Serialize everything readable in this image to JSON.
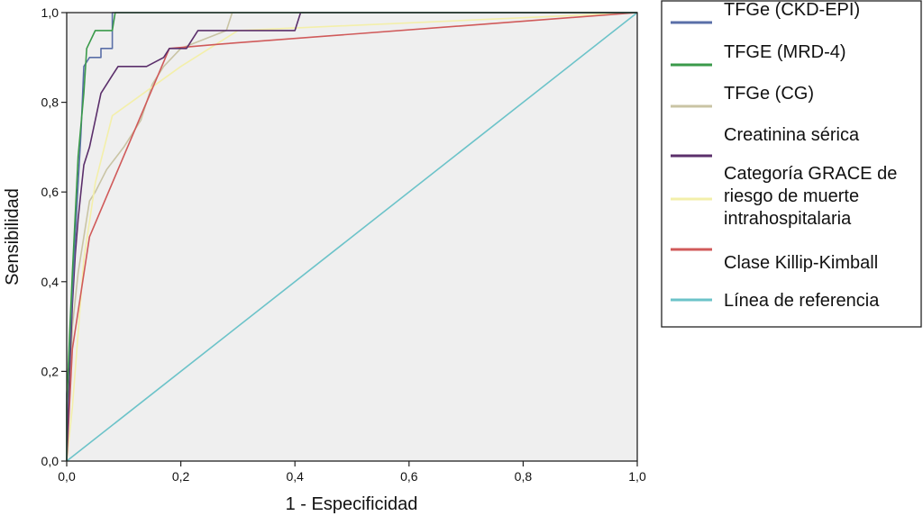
{
  "chart_data": {
    "type": "line",
    "xlabel": "1 - Especificidad",
    "ylabel": "Sensibilidad",
    "xlim": [
      0,
      1
    ],
    "ylim": [
      0,
      1
    ],
    "x_ticks": [
      "0,0",
      "0,2",
      "0,4",
      "0,6",
      "0,8",
      "1,0"
    ],
    "y_ticks": [
      "0,0",
      "0,2",
      "0,4",
      "0,6",
      "0,8",
      "1,0"
    ],
    "grid": false,
    "legend_position": "right",
    "series": [
      {
        "name": "TFGe (CKD-EPI)",
        "color": "#5a6fa8",
        "legend_lines": [
          "TFGe (CKD-EPI)"
        ],
        "points": [
          [
            0,
            0
          ],
          [
            0,
            0.15
          ],
          [
            0.005,
            0.25
          ],
          [
            0.01,
            0.38
          ],
          [
            0.015,
            0.5
          ],
          [
            0.02,
            0.62
          ],
          [
            0.025,
            0.73
          ],
          [
            0.03,
            0.88
          ],
          [
            0.04,
            0.9
          ],
          [
            0.06,
            0.9
          ],
          [
            0.06,
            0.92
          ],
          [
            0.08,
            0.92
          ],
          [
            0.08,
            1.0
          ],
          [
            1,
            1
          ]
        ]
      },
      {
        "name": "TFGE (MRD-4)",
        "color": "#3a9a4a",
        "legend_lines": [
          "TFGE (MRD-4)"
        ],
        "points": [
          [
            0,
            0
          ],
          [
            0,
            0.12
          ],
          [
            0.005,
            0.28
          ],
          [
            0.01,
            0.42
          ],
          [
            0.015,
            0.55
          ],
          [
            0.02,
            0.68
          ],
          [
            0.03,
            0.82
          ],
          [
            0.035,
            0.92
          ],
          [
            0.05,
            0.96
          ],
          [
            0.08,
            0.96
          ],
          [
            0.085,
            1.0
          ],
          [
            1,
            1
          ]
        ]
      },
      {
        "name": "TFGe (CG)",
        "color": "#c9c4a4",
        "legend_lines": [
          "TFGe (CG)"
        ],
        "points": [
          [
            0,
            0
          ],
          [
            0.005,
            0.15
          ],
          [
            0.01,
            0.3
          ],
          [
            0.02,
            0.42
          ],
          [
            0.03,
            0.5
          ],
          [
            0.04,
            0.58
          ],
          [
            0.05,
            0.6
          ],
          [
            0.07,
            0.65
          ],
          [
            0.1,
            0.7
          ],
          [
            0.13,
            0.76
          ],
          [
            0.14,
            0.8
          ],
          [
            0.15,
            0.84
          ],
          [
            0.17,
            0.88
          ],
          [
            0.2,
            0.92
          ],
          [
            0.28,
            0.96
          ],
          [
            0.29,
            1.0
          ],
          [
            1,
            1
          ]
        ]
      },
      {
        "name": "Creatinina sérica",
        "color": "#5b2f6b",
        "legend_lines": [
          "Creatinina sérica"
        ],
        "points": [
          [
            0,
            0
          ],
          [
            0.005,
            0.2
          ],
          [
            0.01,
            0.35
          ],
          [
            0.015,
            0.46
          ],
          [
            0.02,
            0.54
          ],
          [
            0.025,
            0.6
          ],
          [
            0.03,
            0.66
          ],
          [
            0.04,
            0.7
          ],
          [
            0.05,
            0.76
          ],
          [
            0.06,
            0.82
          ],
          [
            0.08,
            0.86
          ],
          [
            0.09,
            0.88
          ],
          [
            0.14,
            0.88
          ],
          [
            0.17,
            0.9
          ],
          [
            0.18,
            0.92
          ],
          [
            0.21,
            0.92
          ],
          [
            0.23,
            0.96
          ],
          [
            0.4,
            0.96
          ],
          [
            0.41,
            1.0
          ],
          [
            1,
            1
          ]
        ]
      },
      {
        "name": "Categoría GRACE de riesgo de muerte intrahospitalaria",
        "color": "#f3efaa",
        "legend_lines": [
          "Categoría GRACE de",
          "riesgo de muerte",
          "intrahospitalaria"
        ],
        "points": [
          [
            0,
            0
          ],
          [
            0.01,
            0.12
          ],
          [
            0.03,
            0.45
          ],
          [
            0.05,
            0.62
          ],
          [
            0.08,
            0.77
          ],
          [
            0.2,
            0.88
          ],
          [
            0.3,
            0.96
          ],
          [
            1,
            1
          ]
        ]
      },
      {
        "name": "Clase Killip-Kimball",
        "color": "#d05a5a",
        "legend_lines": [
          "Clase Killip-Kimball"
        ],
        "points": [
          [
            0,
            0
          ],
          [
            0.01,
            0.25
          ],
          [
            0.04,
            0.5
          ],
          [
            0.18,
            0.92
          ],
          [
            0.27,
            0.93
          ],
          [
            1,
            1
          ]
        ]
      },
      {
        "name": "Línea de referencia",
        "color": "#6cc3c9",
        "legend_lines": [
          "Línea de referencia"
        ],
        "points": [
          [
            0,
            0
          ],
          [
            1,
            1
          ]
        ]
      }
    ]
  }
}
